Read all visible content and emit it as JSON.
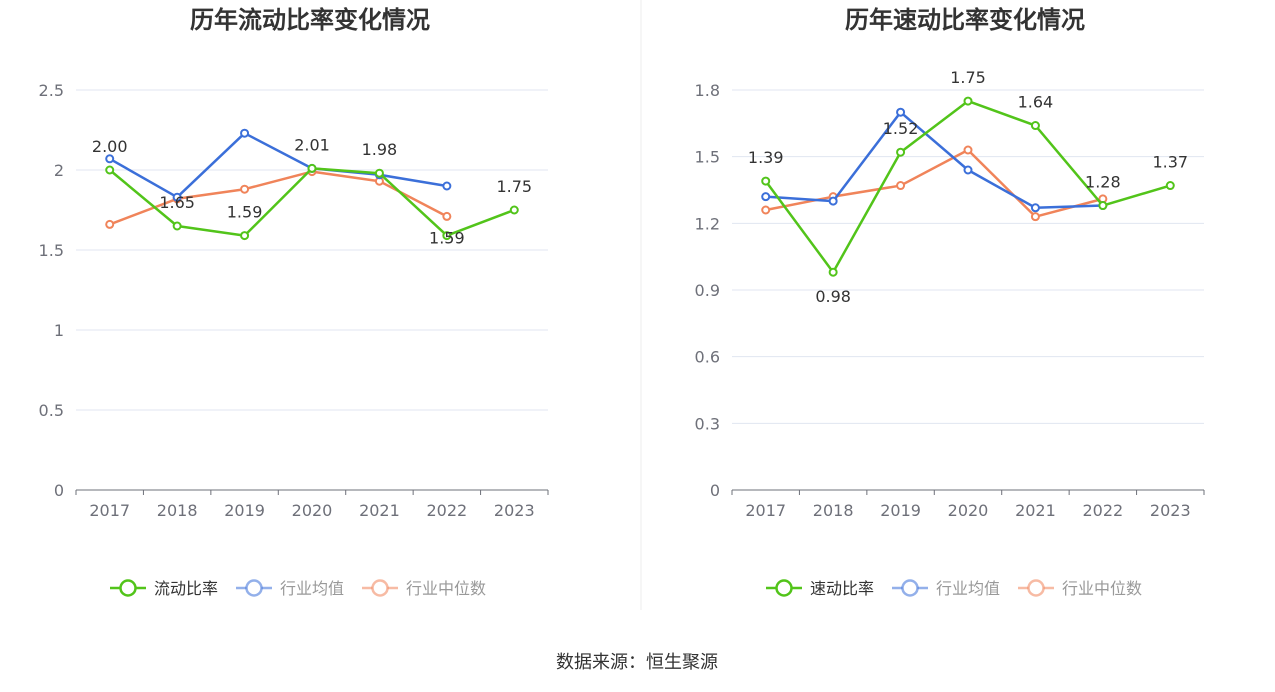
{
  "source_label": "数据来源：恒生聚源",
  "colors": {
    "primary": "#52c41a",
    "average": "#3b6fd9",
    "median": "#f0845a"
  },
  "chart_data": [
    {
      "type": "line",
      "title": "历年流动比率变化情况",
      "categories": [
        "2017",
        "2018",
        "2019",
        "2020",
        "2021",
        "2022",
        "2023"
      ],
      "ylim": [
        0,
        2.5
      ],
      "yticks": [
        0,
        0.5,
        1,
        1.5,
        2,
        2.5
      ],
      "ytick_labels": [
        "0",
        "0.5",
        "1",
        "1.5",
        "2",
        "2.5"
      ],
      "grid": true,
      "legend": "bottom",
      "series": [
        {
          "name": "流动比率",
          "values": [
            2.0,
            1.65,
            1.59,
            2.01,
            1.98,
            1.59,
            1.75
          ],
          "labels": [
            "2.00",
            "1.65",
            "1.59",
            "2.01",
            "1.98",
            "1.59",
            "1.75"
          ]
        },
        {
          "name": "行业均值",
          "values": [
            2.07,
            1.83,
            2.23,
            2.01,
            1.97,
            1.9,
            null
          ]
        },
        {
          "name": "行业中位数",
          "values": [
            1.66,
            1.82,
            1.88,
            1.99,
            1.93,
            1.71,
            null
          ]
        }
      ]
    },
    {
      "type": "line",
      "title": "历年速动比率变化情况",
      "categories": [
        "2017",
        "2018",
        "2019",
        "2020",
        "2021",
        "2022",
        "2023"
      ],
      "ylim": [
        0,
        1.8
      ],
      "yticks": [
        0,
        0.3,
        0.6,
        0.9,
        1.2,
        1.5,
        1.8
      ],
      "ytick_labels": [
        "0",
        "0.3",
        "0.6",
        "0.9",
        "1.2",
        "1.5",
        "1.8"
      ],
      "grid": true,
      "legend": "bottom",
      "series": [
        {
          "name": "速动比率",
          "values": [
            1.39,
            0.98,
            1.52,
            1.75,
            1.64,
            1.28,
            1.37
          ],
          "labels": [
            "1.39",
            "0.98",
            "1.52",
            "1.75",
            "1.64",
            "1.28",
            "1.37"
          ]
        },
        {
          "name": "行业均值",
          "values": [
            1.32,
            1.3,
            1.7,
            1.44,
            1.27,
            1.28,
            null
          ]
        },
        {
          "name": "行业中位数",
          "values": [
            1.26,
            1.32,
            1.37,
            1.53,
            1.23,
            1.31,
            null
          ]
        }
      ]
    }
  ]
}
